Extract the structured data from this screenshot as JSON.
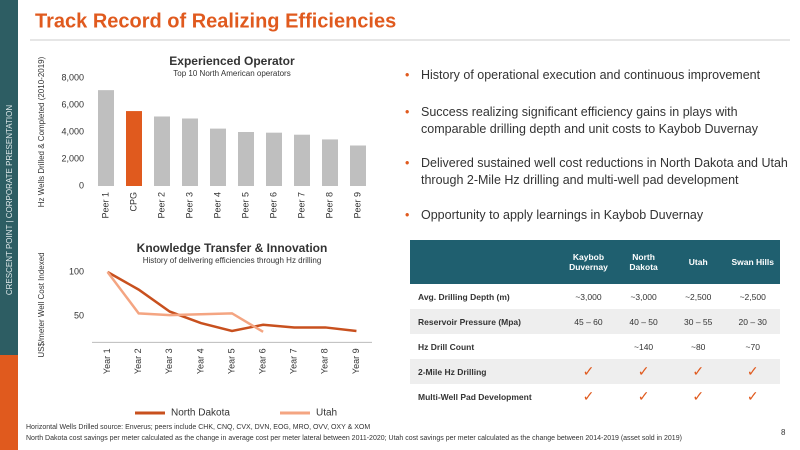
{
  "sidebar": "CRESCENT POINT | CORPORATE PRESENTATION",
  "header": {
    "title": "Track Record of Realizing Efficiencies"
  },
  "chart_data": [
    {
      "type": "bar",
      "title": "Experienced Operator",
      "subtitle": "Top 10 North American operators",
      "y_label": "Hz Wells Drilled & Completed (2010-2019)",
      "categories": [
        "Peer 1",
        "CPG",
        "Peer 2",
        "Peer 3",
        "Peer 4",
        "Peer 5",
        "Peer 6",
        "Peer 7",
        "Peer 8",
        "Peer 9"
      ],
      "values": [
        7100,
        5550,
        5150,
        5000,
        4250,
        4000,
        3950,
        3800,
        3450,
        3000
      ],
      "colors": [
        "#bfbfbf",
        "#e05a1e",
        "#bfbfbf",
        "#bfbfbf",
        "#bfbfbf",
        "#bfbfbf",
        "#bfbfbf",
        "#bfbfbf",
        "#bfbfbf",
        "#bfbfbf"
      ],
      "ylim": [
        0,
        8000
      ],
      "yticks": [
        0,
        {
          "value": 2000,
          "label": "2,000"
        },
        {
          "value": 4000,
          "label": "4,000"
        },
        {
          "value": 6000,
          "label": "6,000"
        },
        {
          "value": 8000,
          "label": "8,000"
        }
      ]
    },
    {
      "type": "line",
      "title": "Knowledge Transfer & Innovation",
      "subtitle": "History of delivering efficiencies through Hz drilling",
      "y_label": "US$/meter Well Cost Indexed",
      "categories": [
        "Year 1",
        "Year 2",
        "Year 3",
        "Year 4",
        "Year 5",
        "Year 6",
        "Year 7",
        "Year 8",
        "Year 9"
      ],
      "series": [
        {
          "name": "North Dakota",
          "color": "#c8501e",
          "values": [
            100,
            80,
            55,
            42,
            33,
            40,
            37,
            37,
            33
          ]
        },
        {
          "name": "Utah",
          "color": "#f4a582",
          "values": [
            100,
            53,
            51,
            52,
            53,
            32,
            null,
            null,
            null
          ]
        }
      ],
      "ylim": [
        20,
        105
      ],
      "yticks": [
        50,
        100
      ],
      "legend": "bottom"
    }
  ],
  "bullets": [
    "History of operational execution and continuous improvement",
    "Success realizing significant efficiency gains in plays with comparable drilling depth and unit costs to Kaybob Duvernay",
    "Delivered sustained well cost reductions in North Dakota and Utah through 2-Mile Hz drilling and multi-well pad development",
    "Opportunity to apply learnings in Kaybob Duvernay"
  ],
  "table": {
    "columns": [
      "Kaybob Duvernay",
      "North Dakota",
      "Utah",
      "Swan Hills"
    ],
    "rows": [
      [
        "Avg. Drilling Depth (m)",
        "~3,000",
        "~3,000",
        "~2,500",
        "~2,500"
      ],
      [
        "Reservoir Pressure (Mpa)",
        "45 – 60",
        "40 – 50",
        "30 – 55",
        "20 – 30"
      ],
      [
        "Hz Drill Count",
        null,
        "~140",
        "~80",
        "~70"
      ],
      [
        "2-Mile Hz Drilling",
        "✓",
        "✓",
        "✓",
        "✓"
      ],
      [
        "Multi-Well Pad Development",
        "✓",
        "✓",
        "✓",
        "✓"
      ]
    ]
  },
  "footer": {
    "notes": [
      "Horizontal Wells Drilled source: Enverus; peers include CHK, CNQ, CVX, DVN, EOG, MRO, OVV, OXY & XOM",
      "North Dakota cost savings per meter calculated as the change in average cost per meter lateral between 2011-2020; Utah cost savings per meter calculated as the change between 2014-2019 (asset sold in 2019)"
    ],
    "page": "8"
  }
}
